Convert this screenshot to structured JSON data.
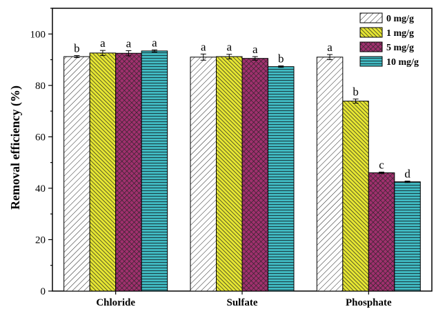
{
  "chart_data": {
    "type": "bar",
    "title": "",
    "xlabel": "",
    "ylabel": "Removal efficiency (%)",
    "ylim": [
      0,
      110
    ],
    "yticks": [
      0,
      20,
      40,
      60,
      80,
      100
    ],
    "grid": false,
    "legend_position": "top-right",
    "categories": [
      "Chloride",
      "Sulfate",
      "Phosphate"
    ],
    "series": [
      {
        "name": "0 mg/g",
        "color": "#ffffff",
        "pattern": "diagonal-hatch-thin",
        "values": [
          91.2,
          91.0,
          91.0
        ],
        "errors": [
          0.4,
          1.2,
          1.0
        ],
        "labels": [
          "b",
          "a",
          "a"
        ]
      },
      {
        "name": "1 mg/g",
        "color": "#e6e632",
        "pattern": "diagonal-hatch-dense",
        "values": [
          92.6,
          91.2,
          73.9
        ],
        "errors": [
          1.0,
          0.9,
          0.8
        ],
        "labels": [
          "a",
          "a",
          "b"
        ]
      },
      {
        "name": "5 mg/g",
        "color": "#a0306e",
        "pattern": "crosshatch",
        "values": [
          92.5,
          90.5,
          46.0
        ],
        "errors": [
          1.0,
          0.7,
          0.3
        ],
        "labels": [
          "a",
          "a",
          "c"
        ]
      },
      {
        "name": "10 mg/g",
        "color": "#40b8c0",
        "pattern": "horizontal-lines",
        "values": [
          93.4,
          87.3,
          42.5
        ],
        "errors": [
          0.4,
          0.3,
          0.3
        ],
        "labels": [
          "a",
          "b",
          "d"
        ]
      }
    ]
  }
}
